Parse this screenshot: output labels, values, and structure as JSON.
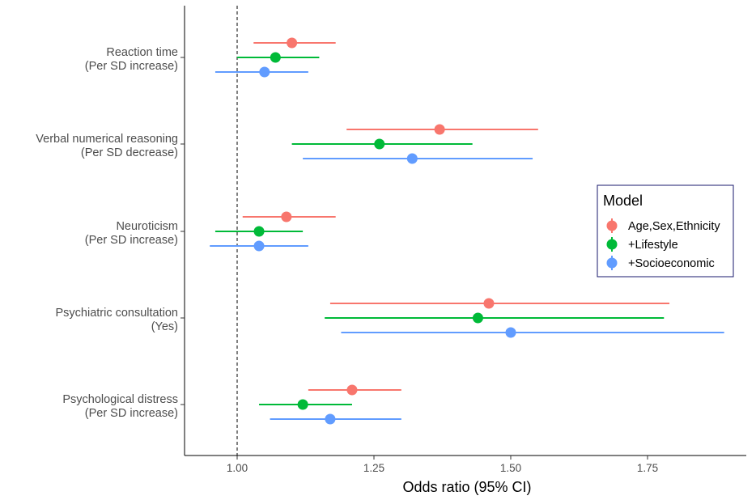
{
  "chart_data": {
    "type": "forest",
    "title": "",
    "xlabel": "Odds ratio (95% CI)",
    "ylabel": "",
    "xlim": [
      0.905,
      1.9
    ],
    "xticks": [
      1.0,
      1.25,
      1.5,
      1.75
    ],
    "xtick_labels": [
      "1.00",
      "1.25",
      "1.50",
      "1.75"
    ],
    "reference_line": 1.0,
    "grid": false,
    "legend": {
      "title": "Model",
      "placement": "right"
    },
    "series": [
      {
        "name": "Age,Sex,Ethnicity",
        "color": "#F8766D"
      },
      {
        "name": "+Lifestyle",
        "color": "#00BA38"
      },
      {
        "name": "+Socioeconomic",
        "color": "#619CFF"
      }
    ],
    "categories": [
      {
        "label_line1": "Reaction time",
        "label_line2": "(Per SD increase)",
        "points": [
          {
            "series": "Age,Sex,Ethnicity",
            "or": 1.1,
            "lo": 1.03,
            "hi": 1.18
          },
          {
            "series": "+Lifestyle",
            "or": 1.07,
            "lo": 1.0,
            "hi": 1.15
          },
          {
            "series": "+Socioeconomic",
            "or": 1.05,
            "lo": 0.96,
            "hi": 1.13
          }
        ]
      },
      {
        "label_line1": "Verbal numerical reasoning",
        "label_line2": "(Per SD decrease)",
        "points": [
          {
            "series": "Age,Sex,Ethnicity",
            "or": 1.37,
            "lo": 1.2,
            "hi": 1.55
          },
          {
            "series": "+Lifestyle",
            "or": 1.26,
            "lo": 1.1,
            "hi": 1.43
          },
          {
            "series": "+Socioeconomic",
            "or": 1.32,
            "lo": 1.12,
            "hi": 1.54
          }
        ]
      },
      {
        "label_line1": "Neuroticism",
        "label_line2": "(Per SD increase)",
        "points": [
          {
            "series": "Age,Sex,Ethnicity",
            "or": 1.09,
            "lo": 1.01,
            "hi": 1.18
          },
          {
            "series": "+Lifestyle",
            "or": 1.04,
            "lo": 0.96,
            "hi": 1.12
          },
          {
            "series": "+Socioeconomic",
            "or": 1.04,
            "lo": 0.95,
            "hi": 1.13
          }
        ]
      },
      {
        "label_line1": "Psychiatric consultation",
        "label_line2": "(Yes)",
        "points": [
          {
            "series": "Age,Sex,Ethnicity",
            "or": 1.46,
            "lo": 1.17,
            "hi": 1.79
          },
          {
            "series": "+Lifestyle",
            "or": 1.44,
            "lo": 1.16,
            "hi": 1.78
          },
          {
            "series": "+Socioeconomic",
            "or": 1.5,
            "lo": 1.19,
            "hi": 1.89
          }
        ]
      },
      {
        "label_line1": "Psychological distress",
        "label_line2": "(Per SD increase)",
        "points": [
          {
            "series": "Age,Sex,Ethnicity",
            "or": 1.21,
            "lo": 1.13,
            "hi": 1.3
          },
          {
            "series": "+Lifestyle",
            "or": 1.12,
            "lo": 1.04,
            "hi": 1.21
          },
          {
            "series": "+Socioeconomic",
            "or": 1.17,
            "lo": 1.06,
            "hi": 1.3
          }
        ]
      }
    ]
  }
}
